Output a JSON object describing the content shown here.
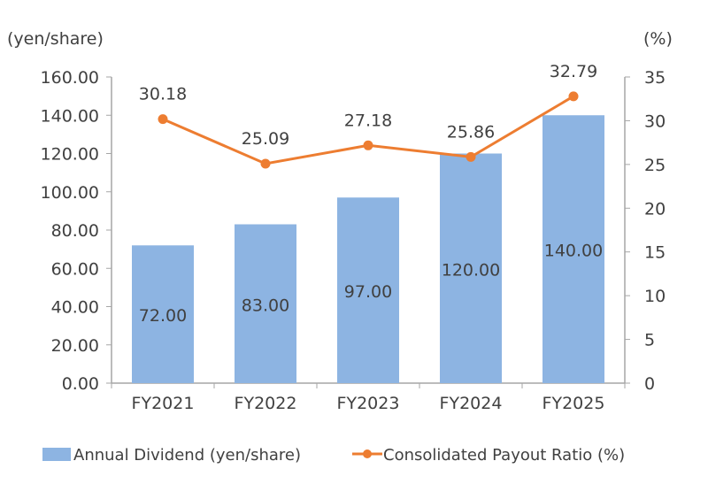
{
  "chart_data": {
    "type": "bar+line",
    "categories": [
      "FY2021",
      "FY2022",
      "FY2023",
      "FY2024",
      "FY2025"
    ],
    "series": [
      {
        "name": "Annual Dividend (yen/share)",
        "type": "bar",
        "axis": "left",
        "color": "#8DB4E2",
        "values": [
          72.0,
          83.0,
          97.0,
          120.0,
          140.0
        ],
        "labels": [
          "72.00",
          "83.00",
          "97.00",
          "120.00",
          "140.00"
        ]
      },
      {
        "name": "Consolidated Payout Ratio (%)",
        "type": "line",
        "axis": "right",
        "color": "#ED7D31",
        "values": [
          30.18,
          25.09,
          27.18,
          25.86,
          32.79
        ],
        "labels": [
          "30.18",
          "25.09",
          "27.18",
          "25.86",
          "32.79"
        ]
      }
    ],
    "left_axis": {
      "label": "(yen/share)",
      "range": [
        0,
        160
      ],
      "ticks": [
        "0.00",
        "20.00",
        "40.00",
        "60.00",
        "80.00",
        "100.00",
        "120.00",
        "140.00",
        "160.00"
      ]
    },
    "right_axis": {
      "label": "(%)",
      "range": [
        0,
        35
      ],
      "ticks": [
        "0",
        "5",
        "10",
        "15",
        "20",
        "25",
        "30",
        "35"
      ]
    },
    "grid": false,
    "legend_position": "bottom"
  }
}
